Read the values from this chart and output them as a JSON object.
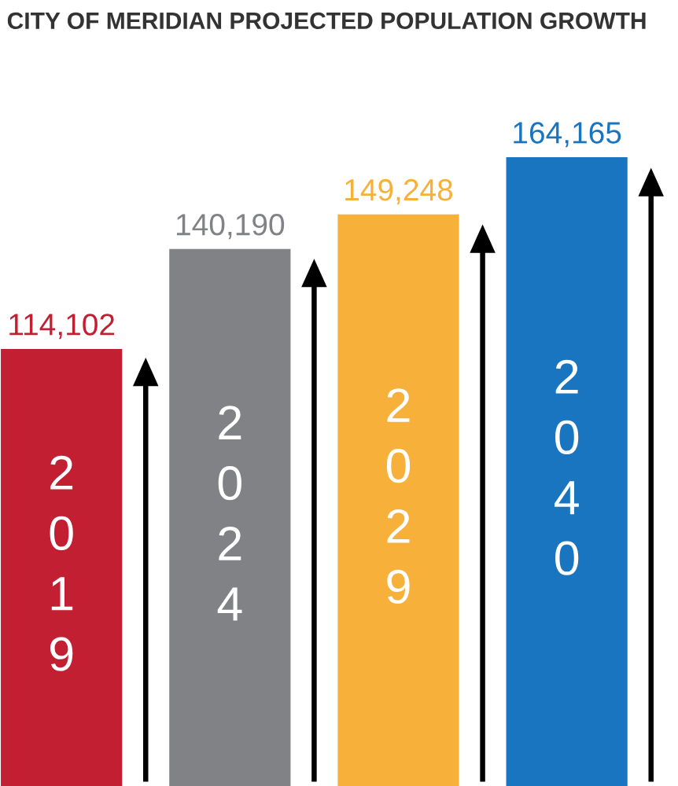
{
  "chart_data": {
    "type": "bar",
    "title": "CITY OF MERIDIAN PROJECTED POPULATION GROWTH",
    "categories": [
      "2019",
      "2024",
      "2029",
      "2040"
    ],
    "values": [
      114102,
      140190,
      149248,
      164165
    ],
    "colors": [
      "#c21f32",
      "#808285",
      "#f7b03a",
      "#1a75c1"
    ],
    "value_labels": [
      "114,102",
      "140,190",
      "149,248",
      "164,165"
    ]
  }
}
